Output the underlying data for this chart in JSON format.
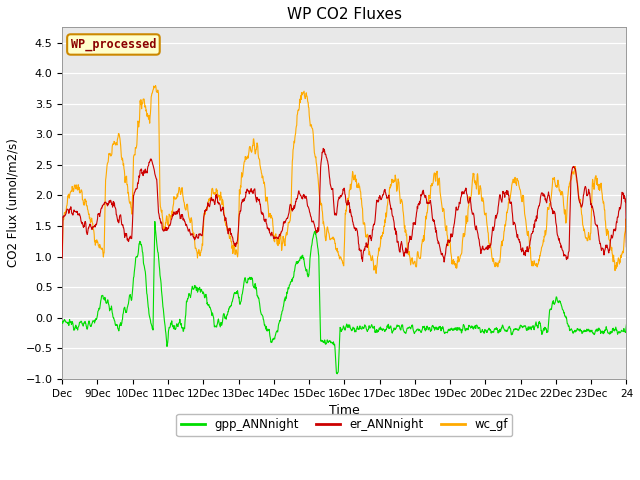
{
  "title": "WP CO2 Fluxes",
  "xlabel": "Time",
  "ylabel_text": "CO2 Flux (umol/m2/s)",
  "xlim_days": [
    8,
    24
  ],
  "ylim": [
    -1.0,
    4.75
  ],
  "yticks": [
    -1.0,
    -0.5,
    0.0,
    0.5,
    1.0,
    1.5,
    2.0,
    2.5,
    3.0,
    3.5,
    4.0,
    4.5
  ],
  "xtick_positions": [
    8,
    9,
    10,
    11,
    12,
    13,
    14,
    15,
    16,
    17,
    18,
    19,
    20,
    21,
    22,
    23,
    24
  ],
  "xtick_labels": [
    "Dec",
    "9Dec",
    "10Dec",
    "11Dec",
    "12Dec",
    "13Dec",
    "14Dec",
    "15Dec",
    "16Dec",
    "17Dec",
    "18Dec",
    "19Dec",
    "20Dec",
    "21Dec",
    "22Dec",
    "23Dec",
    "24"
  ],
  "colors": {
    "gpp": "#00dd00",
    "er": "#cc0000",
    "wc": "#ffaa00"
  },
  "legend_label": "WP_processed",
  "legend_bg": "#ffffcc",
  "legend_edge": "#cc8800",
  "bg_color": "#e8e8e8",
  "line_width": 0.8
}
